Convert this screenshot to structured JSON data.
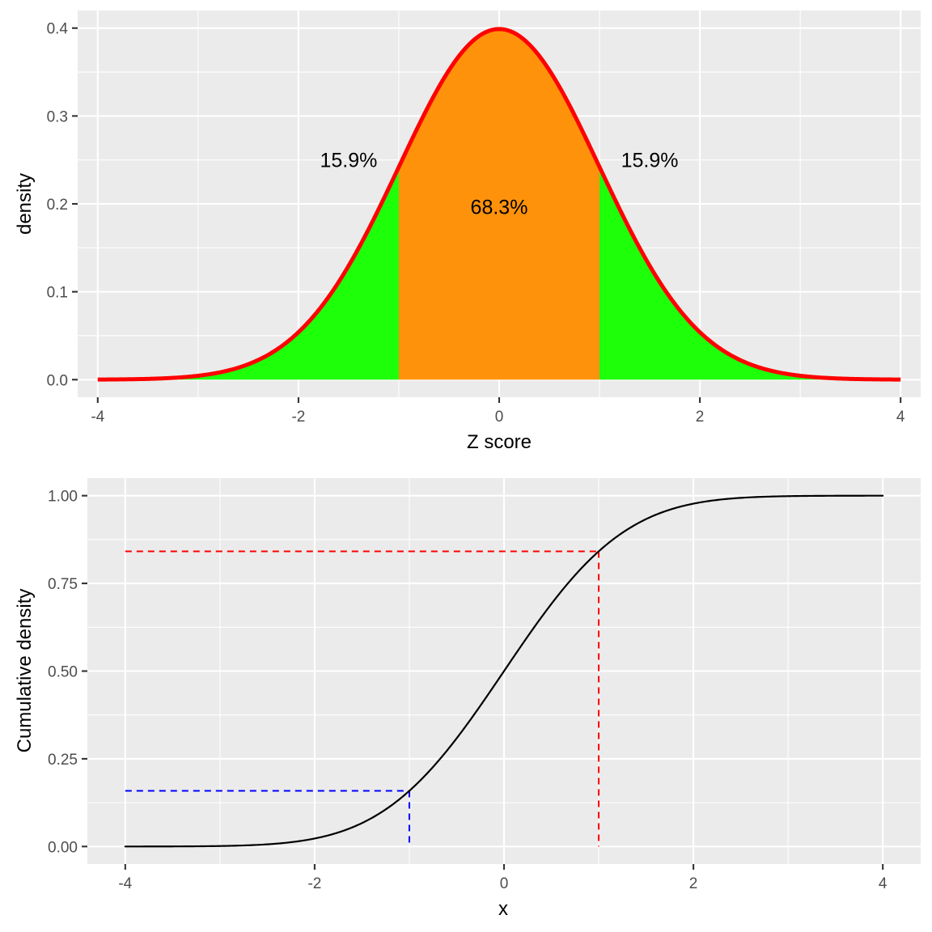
{
  "chart_data": [
    {
      "type": "area",
      "description_free": true,
      "x": {
        "min": -4,
        "max": 4,
        "ticks": [
          -4,
          -2,
          0,
          2,
          4
        ],
        "tick_labels": [
          "-4",
          "-2",
          "0",
          "2",
          "4"
        ]
      },
      "y": {
        "min": 0,
        "max": 0.4,
        "ticks": [
          0.0,
          0.1,
          0.2,
          0.3,
          0.4
        ],
        "tick_labels": [
          "0.0",
          "0.1",
          "0.2",
          "0.3",
          "0.4"
        ]
      },
      "xlim": [
        -4.2,
        4.2
      ],
      "ylim": [
        -0.02,
        0.42
      ],
      "xlabel": "Z score",
      "ylabel": "density",
      "curve": {
        "function": "normal_pdf",
        "mean": 0,
        "sd": 1,
        "x_range": [
          -4,
          4
        ],
        "color": "#FF0000"
      },
      "regions": [
        {
          "from": -4,
          "to": -1,
          "color": "#1EFF0A"
        },
        {
          "from": -1,
          "to": 1,
          "color": "#FF920B"
        },
        {
          "from": 1,
          "to": 4,
          "color": "#1EFF0A"
        }
      ],
      "annotations": [
        {
          "x": -1.5,
          "y": 0.25,
          "text": "15.9%"
        },
        {
          "x": 0,
          "y": 0.197,
          "text": "68.3%"
        },
        {
          "x": 1.5,
          "y": 0.25,
          "text": "15.9%"
        }
      ],
      "grid": true
    },
    {
      "type": "line",
      "x": {
        "min": -4,
        "max": 4,
        "ticks": [
          -4,
          -2,
          0,
          2,
          4
        ],
        "tick_labels": [
          "-4",
          "-2",
          "0",
          "2",
          "4"
        ]
      },
      "y": {
        "min": 0,
        "max": 1,
        "ticks": [
          0.0,
          0.25,
          0.5,
          0.75,
          1.0
        ],
        "tick_labels": [
          "0.00",
          "0.25",
          "0.50",
          "0.75",
          "1.00"
        ]
      },
      "xlim": [
        -4.4,
        4.4
      ],
      "ylim": [
        -0.05,
        1.05
      ],
      "xlabel": "x",
      "ylabel": "Cumulative density",
      "curve": {
        "function": "normal_cdf",
        "mean": 0,
        "sd": 1,
        "x_range": [
          -4,
          4
        ],
        "color": "#000000"
      },
      "reference_lines": [
        {
          "x": -1,
          "y": 0.1587,
          "x_start": -4,
          "color": "#0000FF",
          "style": "dashed"
        },
        {
          "x": 1,
          "y": 0.8413,
          "x_start": -4,
          "color": "#FF0000",
          "style": "dashed"
        }
      ],
      "grid": true
    }
  ]
}
